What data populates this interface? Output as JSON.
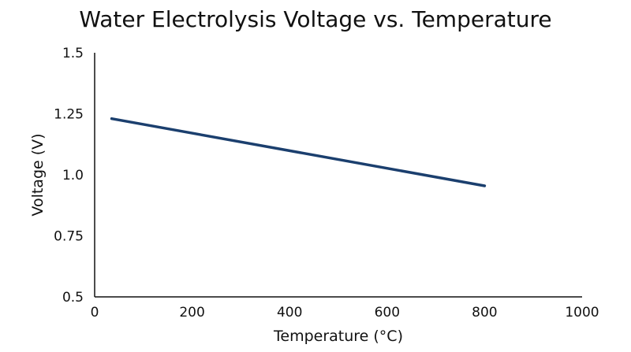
{
  "chart_data": {
    "type": "line",
    "title": "Water Electrolysis Voltage vs. Temperature",
    "xlabel": "Temperature (°C)",
    "ylabel": "Voltage (V)",
    "xlim": [
      0,
      1000
    ],
    "ylim": [
      0.5,
      1.5
    ],
    "x_ticks": [
      {
        "value": 0,
        "label": "0"
      },
      {
        "value": 200,
        "label": "200"
      },
      {
        "value": 400,
        "label": "400"
      },
      {
        "value": 600,
        "label": "600"
      },
      {
        "value": 800,
        "label": "800"
      },
      {
        "value": 1000,
        "label": "1000"
      }
    ],
    "y_ticks": [
      {
        "value": 0.5,
        "label": "0.5"
      },
      {
        "value": 0.75,
        "label": "0.75"
      },
      {
        "value": 1.0,
        "label": "1.0"
      },
      {
        "value": 1.25,
        "label": "1.25"
      },
      {
        "value": 1.5,
        "label": "1.5"
      }
    ],
    "grid": false,
    "legend": "none",
    "series": [
      {
        "color": "#1b3f6e",
        "x": [
          35,
          800
        ],
        "y": [
          1.23,
          0.955
        ]
      }
    ]
  }
}
